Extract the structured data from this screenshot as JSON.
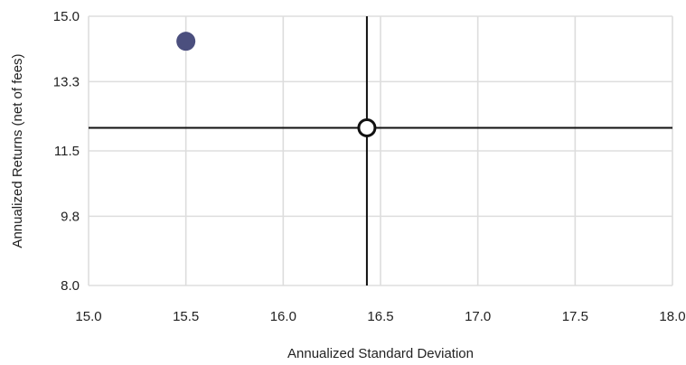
{
  "chart_data": {
    "type": "scatter",
    "title": "",
    "xlabel": "Annualized Standard Deviation",
    "ylabel": "Annualized Returns (net of fees)",
    "xlim": [
      15.0,
      18.0
    ],
    "ylim": [
      8.0,
      15.0
    ],
    "x_ticks": [
      "15.0",
      "15.5",
      "16.0",
      "16.5",
      "17.0",
      "17.5",
      "18.0"
    ],
    "y_ticks": [
      "8.0",
      "9.8",
      "11.5",
      "13.3",
      "15.0"
    ],
    "grid": true,
    "series": [
      {
        "color": "#4b4f7e",
        "points": [
          {
            "x": 15.5,
            "y": 14.35
          }
        ]
      }
    ],
    "reference": {
      "x": 16.43,
      "y": 12.1,
      "color": "#111111"
    }
  }
}
